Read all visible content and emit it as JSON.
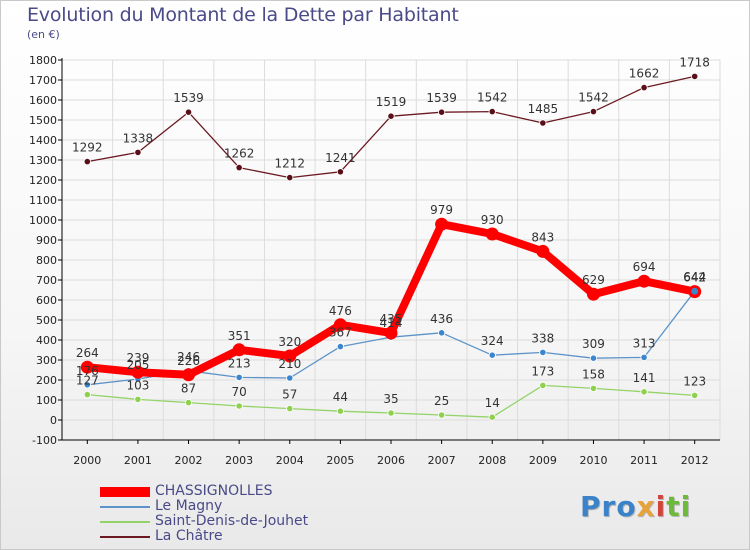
{
  "chart_data": {
    "type": "line",
    "title": "Evolution du Montant de la Dette par Habitant",
    "subtitle": "(en €)",
    "xlabel": "",
    "ylabel": "",
    "x": [
      "2000",
      "2001",
      "2002",
      "2003",
      "2004",
      "2005",
      "2006",
      "2007",
      "2008",
      "2009",
      "2010",
      "2011",
      "2012"
    ],
    "ylim": [
      -100,
      1800
    ],
    "yticks": [
      -100,
      0,
      100,
      200,
      300,
      400,
      500,
      600,
      700,
      800,
      900,
      1000,
      1100,
      1200,
      1300,
      1400,
      1500,
      1600,
      1700,
      1800
    ],
    "grid": true,
    "legend_position": "bottom-left",
    "series": [
      {
        "name": "La Châtre",
        "color": "#6b1a22",
        "values": [
          1292,
          1338,
          1539,
          1262,
          1212,
          1241,
          1519,
          1539,
          1542,
          1485,
          1542,
          1662,
          1718
        ]
      },
      {
        "name": "Saint-Denis-de-Jouhet",
        "color": "#93d367",
        "values": [
          127,
          103,
          87,
          70,
          57,
          44,
          35,
          25,
          14,
          173,
          158,
          141,
          123
        ]
      },
      {
        "name": "Le Magny",
        "color": "#5d93c8",
        "values": [
          176,
          205,
          246,
          213,
          210,
          367,
          414,
          436,
          324,
          338,
          309,
          313,
          644
        ]
      },
      {
        "name": "CHASSIGNOLLES",
        "color": "#ff0000",
        "values": [
          264,
          239,
          226,
          351,
          320,
          476,
          435,
          979,
          930,
          843,
          629,
          694,
          642
        ]
      }
    ],
    "labels": [
      {
        "series": 0,
        "text": [
          "1292",
          "1338",
          "1539",
          "1262",
          "1212",
          "1241",
          "1519",
          "1539",
          "1542",
          "1485",
          "1542",
          "1662",
          "1718"
        ]
      },
      {
        "series": 1,
        "text": [
          "127",
          "103",
          "87",
          "70",
          "57",
          "44",
          "35",
          "25",
          "14",
          "173",
          "158",
          "141",
          "123"
        ]
      },
      {
        "series": 2,
        "text": [
          "176",
          "205",
          "246",
          "213",
          "210",
          "367",
          "414",
          "436",
          "324",
          "338",
          "309",
          "313",
          "644"
        ]
      },
      {
        "series": 3,
        "text": [
          "264",
          "239",
          "226",
          "351",
          "320",
          "476",
          "435",
          "979",
          "930",
          "843",
          "629",
          "694",
          "642"
        ]
      }
    ]
  },
  "legend": [
    {
      "label": "CHASSIGNOLLES",
      "color": "#ff0000"
    },
    {
      "label": "Le Magny",
      "color": "#5d93c8"
    },
    {
      "label": "Saint-Denis-de-Jouhet",
      "color": "#93d367"
    },
    {
      "label": "La Châtre",
      "color": "#6b1a22"
    }
  ],
  "logo": {
    "p1": "Pro",
    "p2": "x",
    "p3": "i",
    "p4": "ti"
  }
}
